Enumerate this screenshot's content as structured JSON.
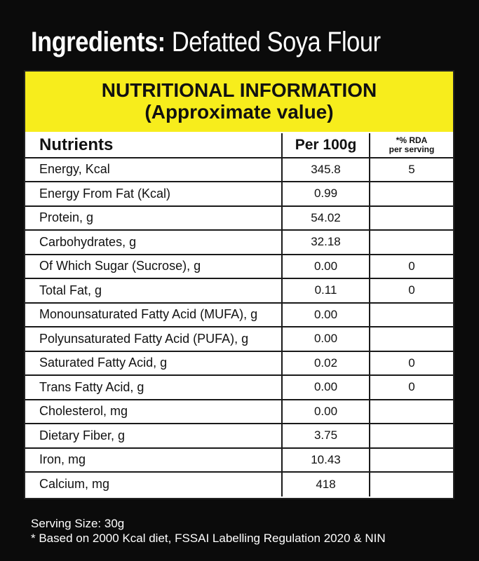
{
  "ingredients": {
    "label": "Ingredients:",
    "value": "Defatted Soya Flour"
  },
  "banner": {
    "title": "NUTRITIONAL INFORMATION",
    "subtitle": "(Approximate value)"
  },
  "table": {
    "headers": {
      "nutrients": "Nutrients",
      "per100g": "Per 100g",
      "rda_line1": "*% RDA",
      "rda_line2": "per serving"
    },
    "rows": [
      {
        "name": "Energy, Kcal",
        "value": "345.8",
        "rda": "5"
      },
      {
        "name": "Energy From Fat (Kcal)",
        "value": "0.99",
        "rda": ""
      },
      {
        "name": "Protein, g",
        "value": "54.02",
        "rda": ""
      },
      {
        "name": "Carbohydrates, g",
        "value": "32.18",
        "rda": ""
      },
      {
        "name": "Of Which Sugar (Sucrose), g",
        "value": "0.00",
        "rda": "0"
      },
      {
        "name": "Total Fat, g",
        "value": "0.11",
        "rda": "0"
      },
      {
        "name": "Monounsaturated Fatty Acid (MUFA), g",
        "value": "0.00",
        "rda": ""
      },
      {
        "name": "Polyunsaturated Fatty Acid (PUFA), g",
        "value": "0.00",
        "rda": ""
      },
      {
        "name": "Saturated Fatty Acid, g",
        "value": "0.02",
        "rda": "0"
      },
      {
        "name": "Trans Fatty Acid, g",
        "value": "0.00",
        "rda": "0"
      },
      {
        "name": "Cholesterol, mg",
        "value": "0.00",
        "rda": ""
      },
      {
        "name": "Dietary Fiber, g",
        "value": "3.75",
        "rda": ""
      },
      {
        "name": "Iron, mg",
        "value": "10.43",
        "rda": ""
      },
      {
        "name": "Calcium, mg",
        "value": "418",
        "rda": ""
      }
    ]
  },
  "footer": {
    "serving": "Serving Size: 30g",
    "note": "* Based on 2000 Kcal diet, FSSAI Labelling Regulation 2020 & NIN"
  },
  "colors": {
    "background": "#0b0b0b",
    "banner": "#f7ed1c",
    "table_bg": "#ffffff",
    "text_light": "#ffffff",
    "text_dark": "#111111"
  }
}
